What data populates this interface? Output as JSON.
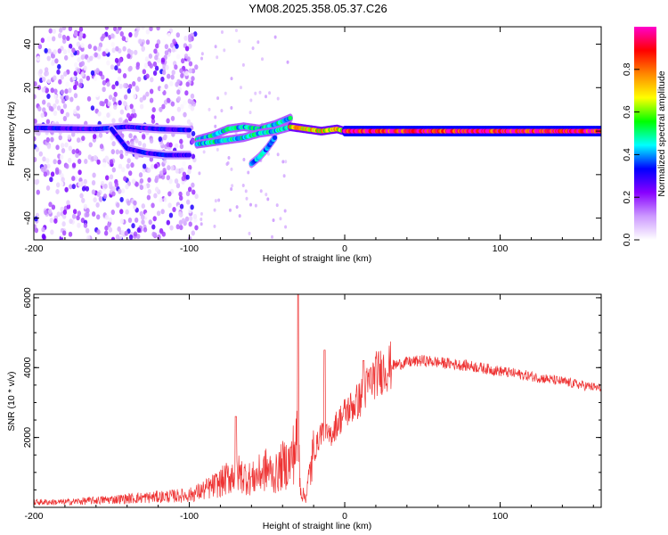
{
  "title": "YM08.2025.358.05.37.C26",
  "chart_data": [
    {
      "type": "heatmap",
      "title": "YM08.2025.358.05.37.C26",
      "xlabel": "Height of straight line (km)",
      "ylabel": "Frequency (Hz)",
      "xlim": [
        -200,
        165
      ],
      "ylim": [
        -50,
        48
      ],
      "xticks": [
        -200,
        -100,
        0,
        100
      ],
      "xtick_labels": [
        "-200",
        "-100",
        "0",
        "100"
      ],
      "yticks": [
        -40,
        -20,
        0,
        20,
        40
      ],
      "ytick_labels": [
        "-40",
        "-20",
        "0",
        "20",
        "40"
      ],
      "colorbar": {
        "label": "Normalized spectral amplitude",
        "range": [
          0,
          1
        ],
        "ticks": [
          0.0,
          0.2,
          0.4,
          0.6,
          0.8
        ],
        "tick_labels": [
          "0.0",
          "0.2",
          "0.4",
          "0.6",
          "0.8"
        ],
        "colormap": [
          "#ffffff",
          "#cc99ff",
          "#8800ff",
          "#0000ff",
          "#00ffff",
          "#00ff00",
          "#ffff00",
          "#ff8800",
          "#ff0000",
          "#ff00cc"
        ]
      },
      "ridges": [
        {
          "x": [
            -200,
            -160,
            -140,
            -120,
            -100
          ],
          "y": [
            1.5,
            1,
            2,
            1,
            0.5
          ],
          "amp": 0.3
        },
        {
          "x": [
            -150,
            -140,
            -128,
            -115,
            -100
          ],
          "y": [
            1,
            -8,
            -10,
            -11,
            -11
          ],
          "amp": 0.3
        },
        {
          "x": [
            -95,
            -85,
            -75,
            -65,
            -55,
            -45,
            -35
          ],
          "y": [
            -4,
            -2,
            1,
            2,
            1,
            3,
            6
          ],
          "amp": 0.45
        },
        {
          "x": [
            -95,
            -85,
            -75,
            -65,
            -55,
            -45,
            -35
          ],
          "y": [
            -6,
            -5,
            -4,
            -3,
            -1,
            0,
            2
          ],
          "amp": 0.45
        },
        {
          "x": [
            -60,
            -55,
            -50,
            -45
          ],
          "y": [
            -15,
            -12,
            -8,
            -3
          ],
          "amp": 0.4
        },
        {
          "x": [
            -35,
            -25,
            -15,
            -5,
            0
          ],
          "y": [
            2,
            1,
            0,
            1,
            0
          ],
          "amp": 0.7
        },
        {
          "x": [
            0,
            40,
            80,
            120,
            165
          ],
          "y": [
            0,
            0,
            0,
            0,
            0
          ],
          "amp": 0.95
        }
      ],
      "scatter_region": {
        "x": [
          -200,
          -95
        ],
        "y": [
          -50,
          48
        ],
        "amp": 0.2
      }
    },
    {
      "type": "line",
      "xlabel": "Height of straight line (km)",
      "ylabel": "SNR (10 * v/v)",
      "xlim": [
        -200,
        165
      ],
      "ylim": [
        0,
        6100
      ],
      "xticks": [
        -200,
        -100,
        0,
        100
      ],
      "xtick_labels": [
        "-200",
        "-100",
        "0",
        "100"
      ],
      "yticks": [
        2000,
        4000,
        6000
      ],
      "ytick_labels": [
        "2000",
        "4000",
        "6000"
      ],
      "color": "#ee3333",
      "envelope": {
        "x": [
          -200,
          -180,
          -160,
          -140,
          -120,
          -100,
          -90,
          -80,
          -70,
          -60,
          -50,
          -45,
          -40,
          -35,
          -32,
          -30,
          -28,
          -25,
          -22,
          -20,
          -15,
          -10,
          -5,
          0,
          5,
          10,
          15,
          20,
          25,
          30,
          40,
          50,
          60,
          80,
          100,
          120,
          140,
          165
        ],
        "y": [
          150,
          150,
          200,
          250,
          300,
          350,
          500,
          700,
          1000,
          800,
          1100,
          900,
          1200,
          1300,
          1700,
          1900,
          400,
          300,
          1100,
          1500,
          2200,
          2000,
          2400,
          2700,
          2900,
          3100,
          3500,
          3800,
          3950,
          4050,
          4150,
          4200,
          4150,
          4050,
          3900,
          3750,
          3600,
          3400
        ]
      },
      "spikes": [
        {
          "x": -70,
          "y": 2600
        },
        {
          "x": -30,
          "y": 6100
        },
        {
          "x": -13,
          "y": 4500
        },
        {
          "x": 12,
          "y": 4200
        }
      ]
    }
  ]
}
